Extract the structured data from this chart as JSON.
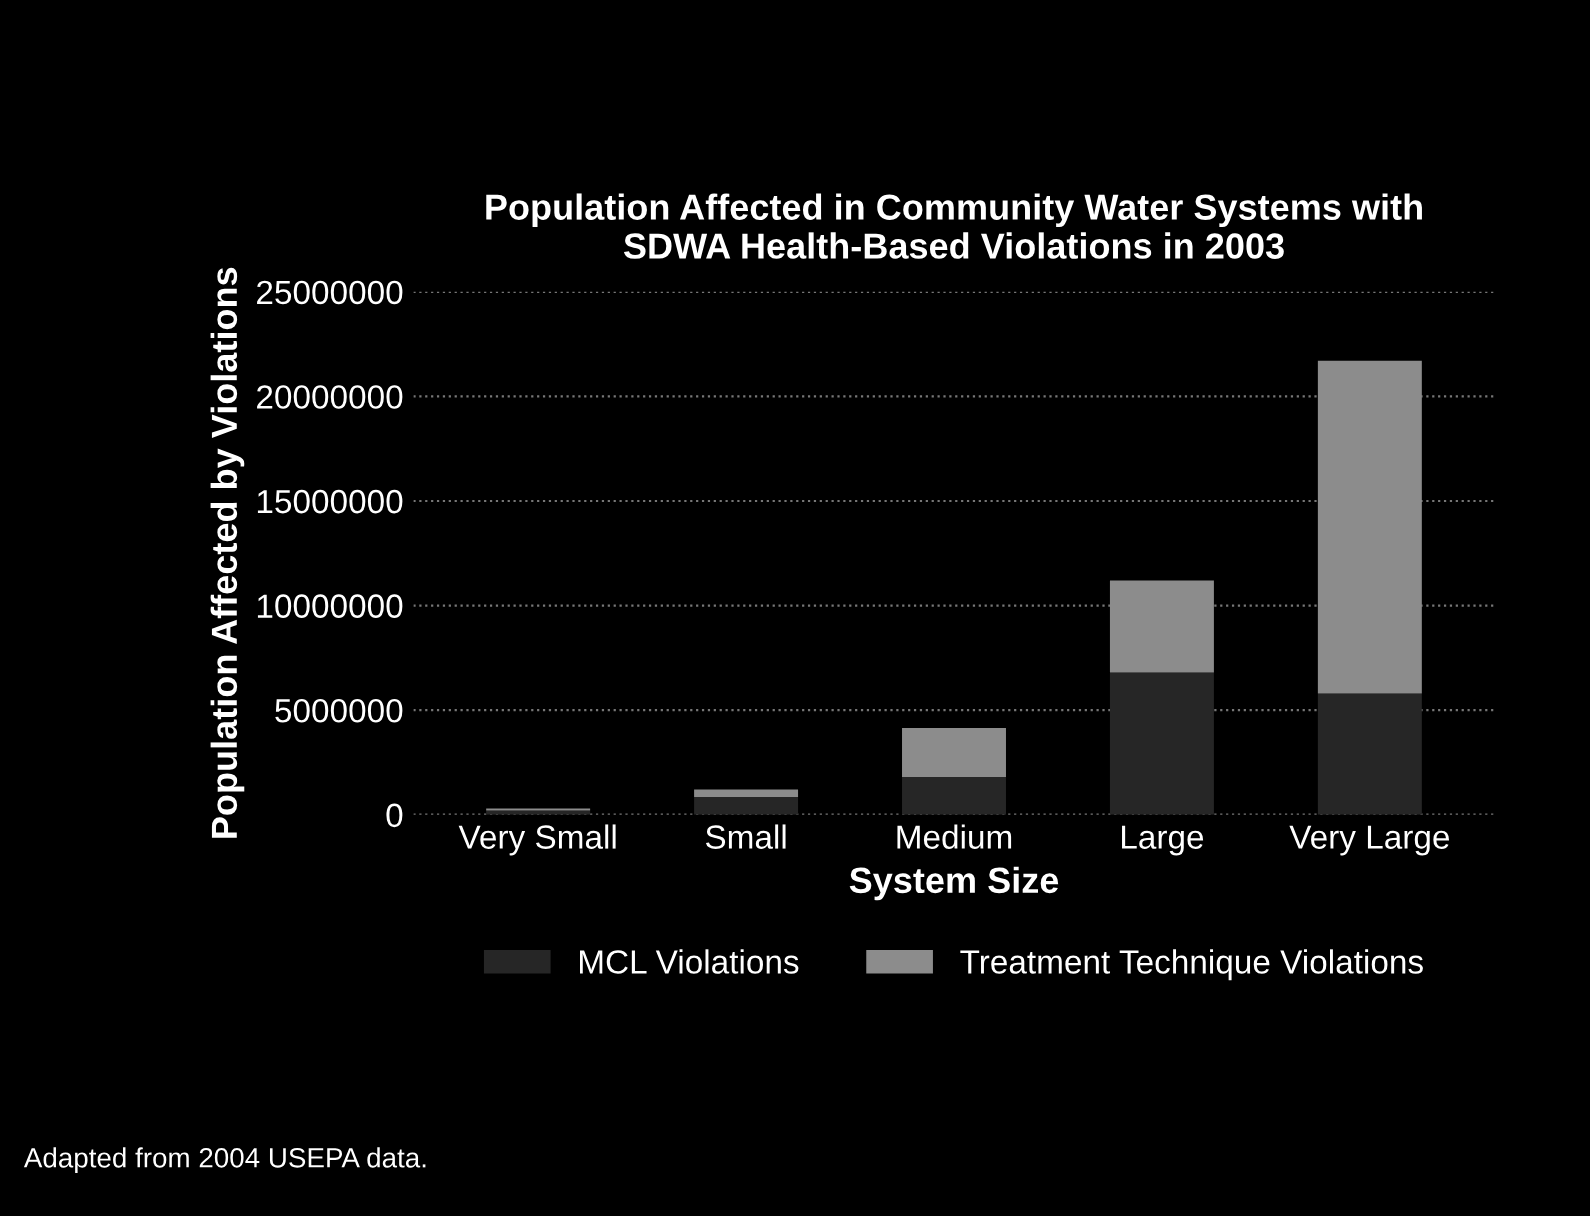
{
  "chart_data": {
    "type": "bar",
    "title": "Population Affected in Community Water Systems with\nSDWA Health-Based Violations in 2003",
    "xlabel": "System Size",
    "ylabel": "Population Affected by Violations",
    "categories": [
      "Very Small",
      "Small",
      "Medium",
      "Large",
      "Very Large"
    ],
    "stacked": true,
    "series": [
      {
        "name": "MCL Violations",
        "color": "#262626",
        "values": [
          200000,
          850000,
          1800000,
          6800000,
          5800000
        ]
      },
      {
        "name": "Treatment Technique Violations",
        "color": "#8c8c8c",
        "values": [
          100000,
          350000,
          2350000,
          4400000,
          15900000
        ]
      }
    ],
    "ylim": [
      0,
      25000000
    ],
    "yticks": [
      0,
      5000000,
      10000000,
      15000000,
      20000000,
      25000000
    ],
    "grid": "y",
    "legend": "bottom",
    "annotations": [
      "Adapted from 2004 USEPA data."
    ]
  }
}
